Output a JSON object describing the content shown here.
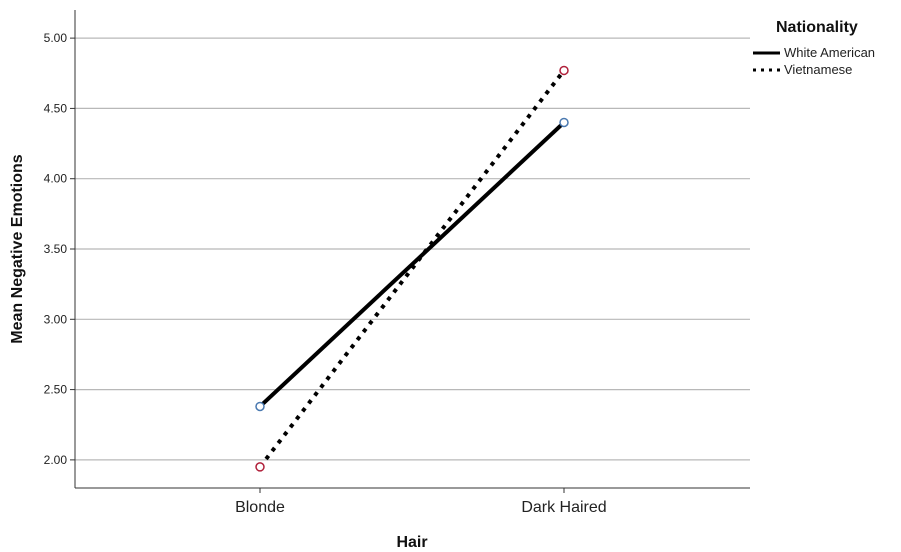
{
  "chart_data": {
    "type": "line",
    "xlabel": "Hair",
    "ylabel": "Mean Negative Emotions",
    "categories": [
      "Blonde",
      "Dark Haired"
    ],
    "ylim": [
      1.8,
      5.2
    ],
    "yticks": [
      "2.00",
      "2.50",
      "3.00",
      "3.50",
      "4.00",
      "4.50",
      "5.00"
    ],
    "grid": true,
    "legend": {
      "title": "Nationality",
      "position": "top-right"
    },
    "series": [
      {
        "name": "White American",
        "values": [
          2.38,
          4.4
        ],
        "line_style": "solid",
        "marker_color": "#4a79b0"
      },
      {
        "name": "Vietnamese",
        "values": [
          1.95,
          4.77
        ],
        "line_style": "dotted",
        "marker_color": "#b0203a"
      }
    ]
  }
}
